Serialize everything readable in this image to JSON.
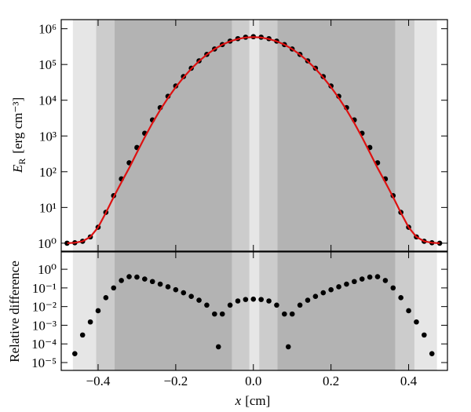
{
  "chart_data": [
    {
      "type": "scatter",
      "yscale": "log",
      "ylabel_symbol": "E",
      "ylabel_sub": "R",
      "ylabel_unit": "[erg cm⁻³]",
      "xlim": [
        -0.495,
        0.5
      ],
      "ylim": [
        0.6,
        1800000
      ],
      "yticks": [
        {
          "value": 1,
          "label": "10⁰"
        },
        {
          "value": 10,
          "label": "10¹"
        },
        {
          "value": 100,
          "label": "10²"
        },
        {
          "value": 1000,
          "label": "10³"
        },
        {
          "value": 10000,
          "label": "10⁴"
        },
        {
          "value": 100000,
          "label": "10⁵"
        },
        {
          "value": 1000000,
          "label": "10⁶"
        }
      ],
      "regions": [
        {
          "start": -0.465,
          "end": -0.405,
          "color": "#e6e6e6"
        },
        {
          "start": -0.405,
          "end": -0.358,
          "color": "#cccccc"
        },
        {
          "start": -0.358,
          "end": -0.055,
          "color": "#b3b3b3"
        },
        {
          "start": -0.055,
          "end": -0.01,
          "color": "#cccccc"
        },
        {
          "start": -0.01,
          "end": 0.015,
          "color": "#e6e6e6"
        },
        {
          "start": 0.015,
          "end": 0.062,
          "color": "#cccccc"
        },
        {
          "start": 0.062,
          "end": 0.366,
          "color": "#b3b3b3"
        },
        {
          "start": 0.366,
          "end": 0.415,
          "color": "#cccccc"
        },
        {
          "start": 0.415,
          "end": 0.473,
          "color": "#e6e6e6"
        }
      ],
      "x": [
        -0.48,
        -0.46,
        -0.44,
        -0.42,
        -0.4,
        -0.38,
        -0.36,
        -0.34,
        -0.32,
        -0.3,
        -0.28,
        -0.26,
        -0.24,
        -0.22,
        -0.2,
        -0.18,
        -0.16,
        -0.14,
        -0.12,
        -0.1,
        -0.08,
        -0.06,
        -0.04,
        -0.02,
        0,
        0.02,
        0.04,
        0.06,
        0.08,
        0.1,
        0.12,
        0.14,
        0.16,
        0.18,
        0.2,
        0.22,
        0.24,
        0.26,
        0.28,
        0.3,
        0.32,
        0.34,
        0.36,
        0.38,
        0.4,
        0.42,
        0.44,
        0.46,
        0.48
      ],
      "series": [
        {
          "style": "markers",
          "color": "#000000",
          "values": [
            1.0,
            1.03,
            1.13,
            1.5,
            2.8,
            7.3,
            21.4,
            63,
            178,
            475,
            1192,
            2807,
            6210,
            12880,
            25090,
            45850,
            78650,
            126700,
            191300,
            271300,
            361000,
            450900,
            528400,
            581000,
            600001,
            581000,
            528400,
            450900,
            361000,
            271300,
            191300,
            126700,
            78650,
            45850,
            25090,
            12880,
            6210,
            2807,
            1192,
            475,
            178,
            63,
            21.4,
            7.3,
            2.8,
            1.5,
            1.13,
            1.03,
            1.0
          ]
        },
        {
          "style": "line",
          "color": "#dd1111",
          "values": [
            1.0,
            1.03,
            1.13,
            1.5,
            2.78,
            7.1,
            19.5,
            50.4,
            127,
            344,
            917,
            2301,
            5353,
            11550,
            23230,
            43460,
            75990,
            124000,
            189000,
            270200,
            359600,
            445600,
            518000,
            567400,
            585400,
            567400,
            518000,
            445600,
            359600,
            270200,
            189000,
            124000,
            75990,
            43460,
            23230,
            11550,
            5353,
            2301,
            917,
            344,
            127,
            50.4,
            19.5,
            7.1,
            2.78,
            1.5,
            1.13,
            1.03,
            1.0
          ]
        }
      ]
    },
    {
      "type": "scatter",
      "yscale": "log",
      "ylabel": "Relative difference",
      "xlabel_symbol": "x",
      "xlabel_unit": "[cm]",
      "xlim": [
        -0.495,
        0.5
      ],
      "ylim": [
        3.8e-06,
        8.5
      ],
      "xticks": [
        {
          "value": -0.4,
          "label": "−0.4"
        },
        {
          "value": -0.2,
          "label": "−0.2"
        },
        {
          "value": 0,
          "label": "0.0"
        },
        0.2,
        0.4
      ],
      "yticks": [
        {
          "value": 1e-05,
          "label": "10⁻⁵"
        },
        {
          "value": 0.0001,
          "label": "10⁻⁴"
        },
        {
          "value": 0.001,
          "label": "10⁻³"
        },
        {
          "value": 0.01,
          "label": "10⁻²"
        },
        {
          "value": 0.1,
          "label": "10⁻¹"
        },
        {
          "value": 1,
          "label": "10⁰"
        }
      ],
      "x": [
        -0.46,
        -0.44,
        -0.42,
        -0.4,
        -0.38,
        -0.36,
        -0.34,
        -0.32,
        -0.3,
        -0.28,
        -0.26,
        -0.24,
        -0.22,
        -0.2,
        -0.18,
        -0.16,
        -0.14,
        -0.12,
        -0.1,
        -0.09,
        -0.08,
        -0.06,
        -0.04,
        -0.02,
        0,
        0.02,
        0.04,
        0.06,
        0.08,
        0.09,
        0.1,
        0.12,
        0.14,
        0.16,
        0.18,
        0.2,
        0.22,
        0.24,
        0.26,
        0.28,
        0.3,
        0.32,
        0.34,
        0.36,
        0.38,
        0.4,
        0.42,
        0.44,
        0.46
      ],
      "series": [
        {
          "style": "markers",
          "color": "#000000",
          "values": [
            3e-05,
            0.0003,
            0.0015,
            0.006,
            0.03,
            0.1,
            0.25,
            0.4,
            0.38,
            0.3,
            0.22,
            0.16,
            0.115,
            0.08,
            0.055,
            0.035,
            0.022,
            0.012,
            0.004,
            7e-05,
            0.004,
            0.012,
            0.02,
            0.024,
            0.025,
            0.024,
            0.02,
            0.012,
            0.004,
            7e-05,
            0.004,
            0.012,
            0.022,
            0.035,
            0.055,
            0.08,
            0.115,
            0.16,
            0.22,
            0.3,
            0.38,
            0.4,
            0.25,
            0.1,
            0.03,
            0.006,
            0.0015,
            0.0003,
            3e-05
          ]
        }
      ]
    }
  ]
}
